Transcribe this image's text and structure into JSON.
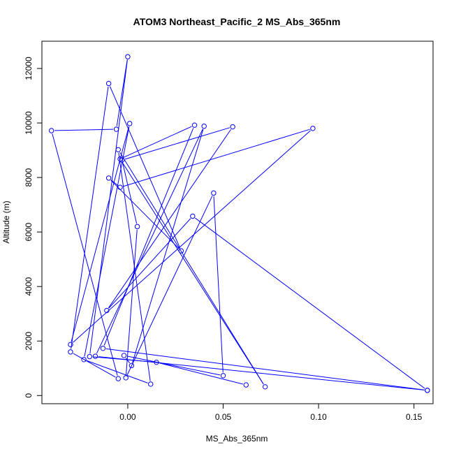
{
  "chart_data": {
    "type": "line",
    "title": "ATOM3 Northeast_Pacific_2 MS_Abs_365nm",
    "xlabel": "MS_Abs_365nm",
    "ylabel": "Altitude (m)",
    "xlim": [
      -0.045,
      0.16
    ],
    "ylim": [
      -300,
      13000
    ],
    "x_ticks": [
      0.0,
      0.05,
      0.1,
      0.15
    ],
    "x_tick_labels": [
      "0.00",
      "0.05",
      "0.10",
      "0.15"
    ],
    "y_ticks": [
      0,
      2000,
      4000,
      6000,
      8000,
      10000,
      12000
    ],
    "y_tick_labels": [
      "0",
      "2000",
      "4000",
      "6000",
      "8000",
      "10000",
      "12000"
    ],
    "grid": false,
    "legend": "none",
    "series": [
      {
        "color": "#0000ff",
        "marker": "open-circle",
        "points": [
          {
            "x": 0.062,
            "y": 390
          },
          {
            "x": 0.015,
            "y": 1220
          },
          {
            "x": -0.02,
            "y": 1430
          },
          {
            "x": 0.0,
            "y": 12430
          },
          {
            "x": -0.006,
            "y": 9770
          },
          {
            "x": -0.04,
            "y": 9720
          },
          {
            "x": -0.005,
            "y": 620
          },
          {
            "x": -0.03,
            "y": 1600
          },
          {
            "x": -0.01,
            "y": 11450
          },
          {
            "x": 0.028,
            "y": 5310
          },
          {
            "x": -0.01,
            "y": 7980
          },
          {
            "x": -0.004,
            "y": 7640
          },
          {
            "x": 0.097,
            "y": 9800
          },
          {
            "x": -0.03,
            "y": 1870
          },
          {
            "x": 0.001,
            "y": 9980
          },
          {
            "x": -0.023,
            "y": 1320
          },
          {
            "x": 0.012,
            "y": 420
          },
          {
            "x": -0.005,
            "y": 9020
          },
          {
            "x": 0.072,
            "y": 320
          },
          {
            "x": -0.004,
            "y": 8680
          },
          {
            "x": 0.035,
            "y": 9920
          },
          {
            "x": -0.013,
            "y": 1730
          },
          {
            "x": 0.157,
            "y": 190
          },
          {
            "x": -0.017,
            "y": 1440
          },
          {
            "x": 0.04,
            "y": 9880
          },
          {
            "x": 0.002,
            "y": 1100
          },
          {
            "x": -0.002,
            "y": 1470
          },
          {
            "x": 0.05,
            "y": 730
          },
          {
            "x": 0.045,
            "y": 7430
          },
          {
            "x": -0.001,
            "y": 650
          },
          {
            "x": 0.005,
            "y": 6200
          },
          {
            "x": -0.003,
            "y": 8640
          },
          {
            "x": 0.055,
            "y": 9860
          },
          {
            "x": -0.011,
            "y": 3120
          },
          {
            "x": 0.034,
            "y": 6580
          },
          {
            "x": 0.157,
            "y": 190
          }
        ]
      }
    ]
  }
}
